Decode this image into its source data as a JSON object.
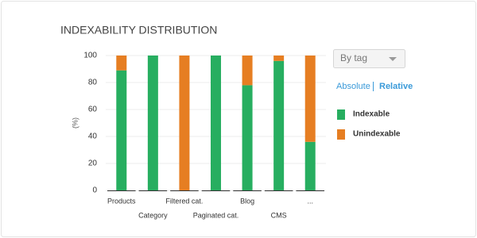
{
  "chart_data": {
    "type": "stacked-bar",
    "title": "INDEXABILITY DISTRIBUTION",
    "y_label": "(%)",
    "categories": [
      "Products",
      "Category",
      "Filtered cat.",
      "Paginated cat.",
      "Blog",
      "CMS",
      "..."
    ],
    "series": [
      {
        "name": "Indexable",
        "color": "#27ae60",
        "values": [
          89,
          100,
          0,
          100,
          78,
          96,
          36
        ]
      },
      {
        "name": "Unindexable",
        "color": "#e67e22",
        "values": [
          11,
          0,
          100,
          0,
          22,
          4,
          64
        ]
      }
    ],
    "ylim": [
      0,
      100
    ],
    "yticks": [
      0,
      20,
      40,
      60,
      80,
      100
    ],
    "grid": true,
    "controls": {
      "dropdown": "By tag",
      "modes": [
        "Absolute",
        "Relative"
      ]
    }
  }
}
